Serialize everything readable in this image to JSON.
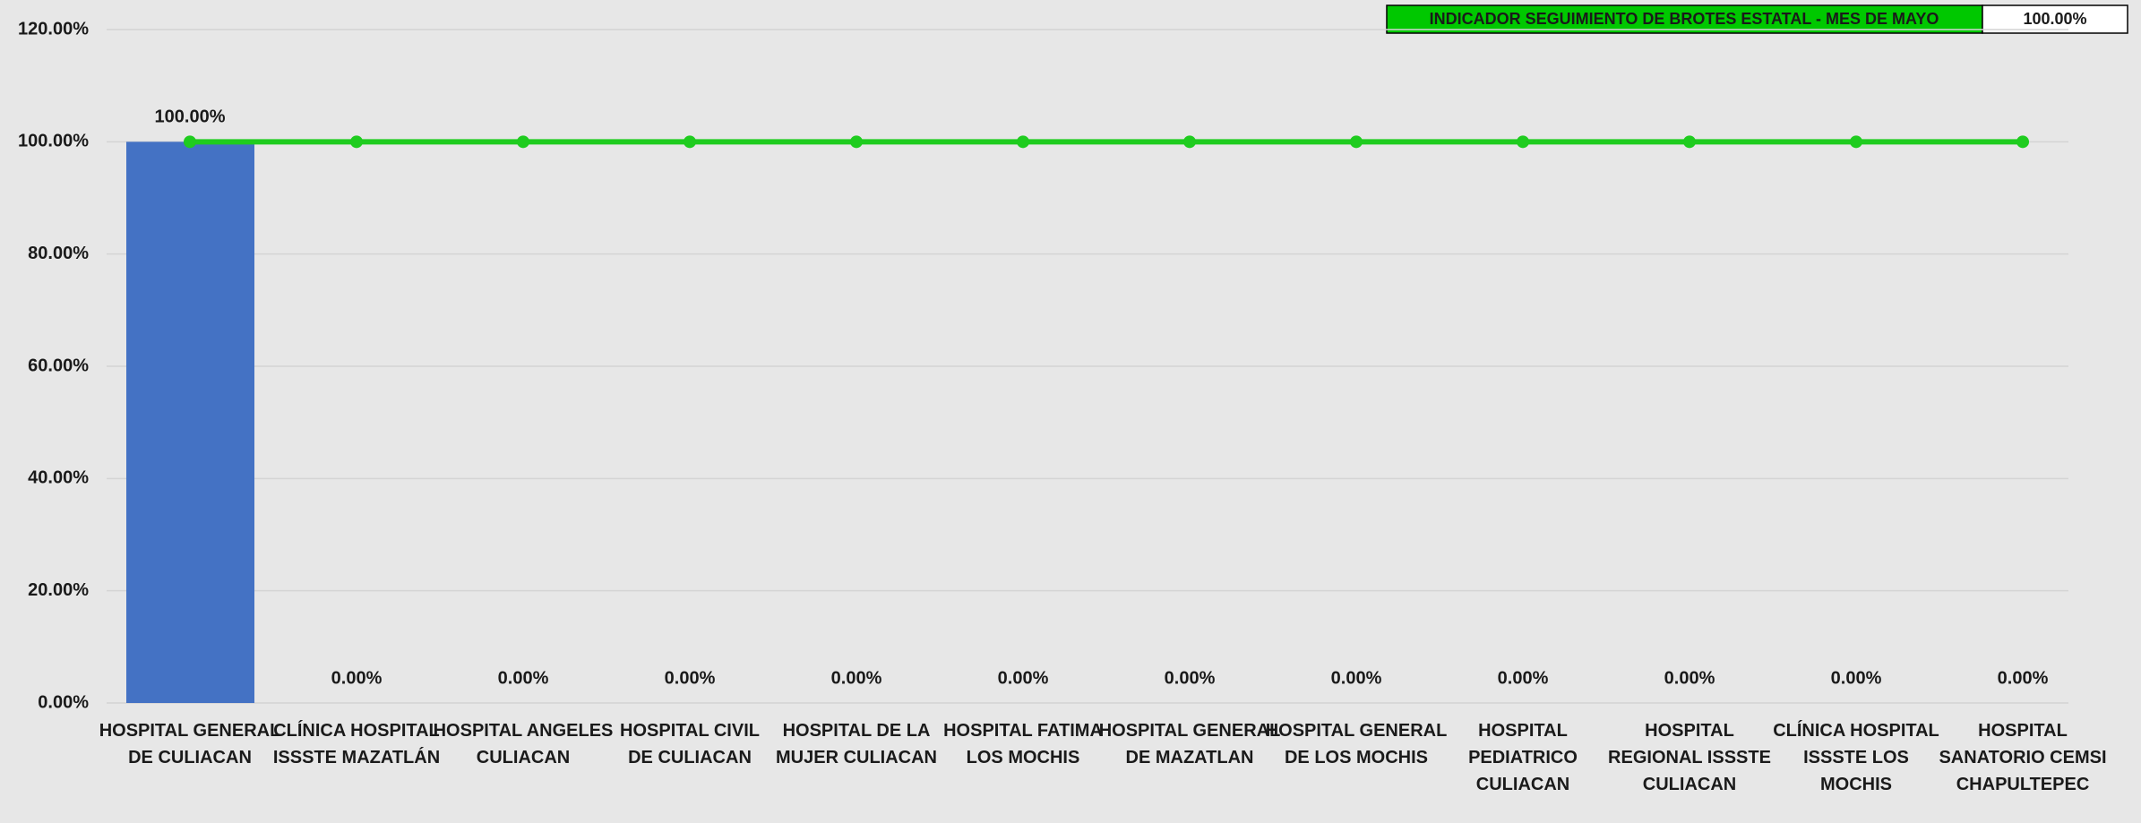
{
  "chart_data": {
    "type": "bar",
    "categories": [
      "HOSPITAL GENERAL DE CULIACAN",
      "CLÍNICA HOSPITAL ISSSTE MAZATLÁN",
      "HOSPITAL ANGELES CULIACAN",
      "HOSPITAL CIVIL DE CULIACAN",
      "HOSPITAL DE LA MUJER CULIACAN",
      "HOSPITAL FATIMA LOS MOCHIS",
      "HOSPITAL GENERAL DE MAZATLAN",
      "HOSPITAL GENERAL DE LOS MOCHIS",
      "HOSPITAL PEDIATRICO CULIACAN",
      "HOSPITAL REGIONAL ISSSTE CULIACAN",
      "CLÍNICA HOSPITAL ISSSTE LOS MOCHIS",
      "HOSPITAL SANATORIO CEMSI CHAPULTEPEC"
    ],
    "series": [
      {
        "type": "bar",
        "color": "#4472c4",
        "values": [
          100,
          0,
          0,
          0,
          0,
          0,
          0,
          0,
          0,
          0,
          0,
          0
        ],
        "value_labels": [
          "100.00%",
          "0.00%",
          "0.00%",
          "0.00%",
          "0.00%",
          "0.00%",
          "0.00%",
          "0.00%",
          "0.00%",
          "0.00%",
          "0.00%",
          "0.00%"
        ]
      },
      {
        "type": "line",
        "color": "#1fcc1f",
        "values": [
          100,
          100,
          100,
          100,
          100,
          100,
          100,
          100,
          100,
          100,
          100,
          100
        ]
      }
    ],
    "indicator": {
      "label": "INDICADOR SEGUIMIENTO DE BROTES ESTATAL - MES DE MAYO",
      "value": 100,
      "value_label": "100.00%",
      "color": "#00c800"
    },
    "ylim": [
      0,
      120
    ],
    "yticks": [
      {
        "value": 0,
        "label": "0.00%"
      },
      {
        "value": 20,
        "label": "20.00%"
      },
      {
        "value": 40,
        "label": "40.00%"
      },
      {
        "value": 60,
        "label": "60.00%"
      },
      {
        "value": 80,
        "label": "80.00%"
      },
      {
        "value": 100,
        "label": "100.00%"
      },
      {
        "value": 120,
        "label": "120.00%"
      }
    ],
    "grid": true
  }
}
